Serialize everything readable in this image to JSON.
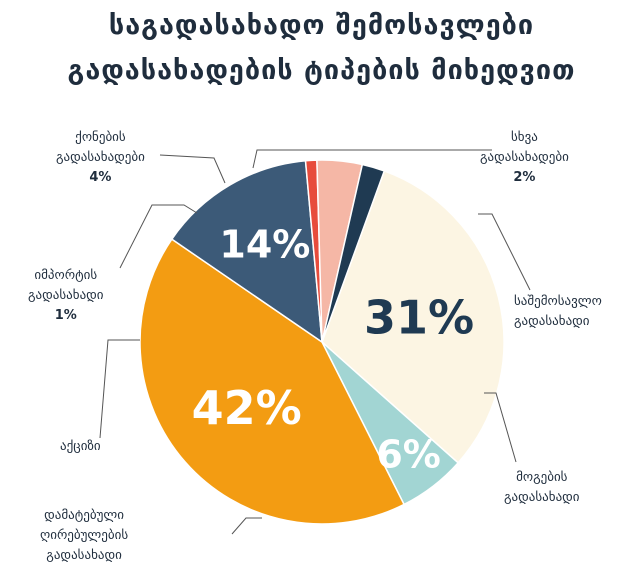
{
  "title": {
    "line1": "საგადასახადო შემოსავლები",
    "line2": "გადასახადების ტიპების მიხედვით"
  },
  "chart_data": {
    "type": "pie",
    "title": "საგადასახადო შემოსავლები გადასახადების ტიპების მიხედვით",
    "slices": [
      {
        "label": "საშემოსავლო გადასახადი",
        "value": 31,
        "display": "31%",
        "color": "#fcf5e3",
        "text_color": "#1f3a52"
      },
      {
        "label": "მოგების გადასახადი",
        "value": 6,
        "display": "6%",
        "color": "#a2d5d3",
        "text_color": "#ffffff"
      },
      {
        "label": "დამატებული ღირებულების გადასახადი",
        "value": 42,
        "display": "42%",
        "color": "#f39c12",
        "text_color": "#ffffff"
      },
      {
        "label": "აქციზი",
        "value": 14,
        "display": "14%",
        "color": "#3c5a78",
        "text_color": "#ffffff"
      },
      {
        "label": "იმპორტის გადასახადი",
        "value": 1,
        "display": "1%",
        "color": "#e74c3c",
        "text_color": "#1f2d3d"
      },
      {
        "label": "ქონების გადასახადები",
        "value": 4,
        "display": "4%",
        "color": "#f5b7a6",
        "text_color": "#1f2d3d"
      },
      {
        "label": "სხვა გადასახადები",
        "value": 2,
        "display": "2%",
        "color": "#1f3a52",
        "text_color": "#1f2d3d"
      }
    ]
  },
  "labels": {
    "income": {
      "l1": "საშემოსავლო",
      "l2": "გადასახადი"
    },
    "profit": {
      "l1": "მოგების",
      "l2": "გადასახადი"
    },
    "vat": {
      "l1": "დამატებული",
      "l2": "ღირებულების",
      "l3": "გადასახადი"
    },
    "excise": {
      "l1": "აქციზი"
    },
    "import": {
      "l1": "იმპორტის",
      "l2": "გადასახადი",
      "pct": "1%"
    },
    "property": {
      "l1": "ქონების",
      "l2": "გადასახადები",
      "pct": "4%"
    },
    "other": {
      "l1": "სხვა",
      "l2": "გადასახადები",
      "pct": "2%"
    }
  }
}
